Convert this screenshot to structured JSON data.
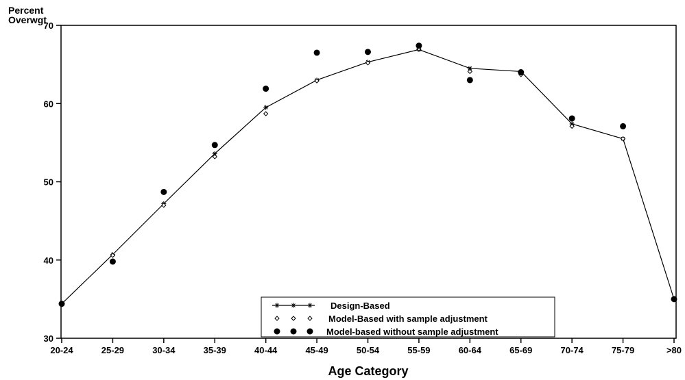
{
  "chart_data": {
    "type": "line",
    "title": "",
    "ylabel_lines": [
      "Percent",
      "Overwgt"
    ],
    "xlabel": "Age Category",
    "categories": [
      "20-24",
      "25-29",
      "30-34",
      "35-39",
      "40-44",
      "45-49",
      "50-54",
      "55-59",
      "60-64",
      "65-69",
      "70-74",
      "75-79",
      ">80"
    ],
    "ylim": [
      30,
      70
    ],
    "yticks": [
      30,
      40,
      50,
      60,
      70
    ],
    "grid": false,
    "legend_position": "bottom-center",
    "series": [
      {
        "name": "Design-Based",
        "style": "line-star",
        "values": [
          34.4,
          40.7,
          47.2,
          53.6,
          59.5,
          63.0,
          65.3,
          66.9,
          64.5,
          64.1,
          57.4,
          55.5,
          35.0
        ]
      },
      {
        "name": "Model-Based with sample adjustment",
        "style": "open-diamond",
        "values": [
          34.4,
          40.6,
          47.0,
          53.2,
          58.7,
          62.9,
          65.2,
          67.0,
          64.1,
          63.7,
          57.1,
          55.5,
          35.0
        ]
      },
      {
        "name": "Model-based without sample adjustment",
        "style": "filled-circle",
        "values": [
          34.4,
          39.8,
          48.7,
          54.7,
          61.9,
          66.5,
          66.6,
          67.4,
          63.0,
          64.0,
          58.1,
          57.1,
          35.0
        ]
      }
    ],
    "colors": {
      "line": "#000000",
      "marker": "#000000",
      "background": "#ffffff"
    }
  }
}
